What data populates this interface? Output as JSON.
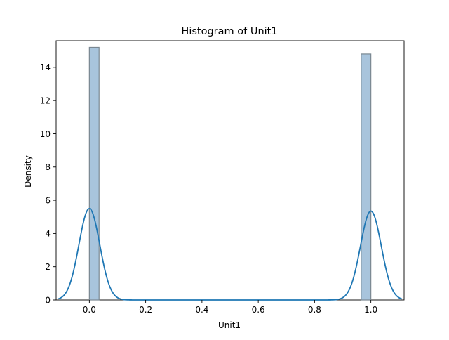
{
  "chart_data": {
    "type": "bar",
    "title": "Histogram of Unit1",
    "xlabel": "Unit1",
    "ylabel": "Density",
    "xlim": [
      -0.118,
      1.118
    ],
    "ylim": [
      0,
      15.6
    ],
    "x_ticks": [
      0.0,
      0.2,
      0.4,
      0.6,
      0.8,
      1.0
    ],
    "x_tick_labels": [
      "0.0",
      "0.2",
      "0.4",
      "0.6",
      "0.8",
      "1.0"
    ],
    "y_ticks": [
      0,
      2,
      4,
      6,
      8,
      10,
      12,
      14
    ],
    "y_tick_labels": [
      "0",
      "2",
      "4",
      "6",
      "8",
      "10",
      "12",
      "14"
    ],
    "grid": false,
    "bins": [
      {
        "x0": 0.0,
        "x1": 0.0345,
        "density": 15.2
      },
      {
        "x0": 0.9655,
        "x1": 1.0,
        "density": 14.8
      }
    ],
    "kde": {
      "components": [
        {
          "center": 0.0,
          "peak": 5.5,
          "sigma": 0.037
        },
        {
          "center": 1.0,
          "peak": 5.35,
          "sigma": 0.037
        }
      ],
      "x_range": [
        -0.11,
        1.11
      ]
    },
    "colors": {
      "bar_fill": "#a8c4dc",
      "bar_edge": "#7a8791",
      "kde_line": "#1f77b4"
    }
  }
}
